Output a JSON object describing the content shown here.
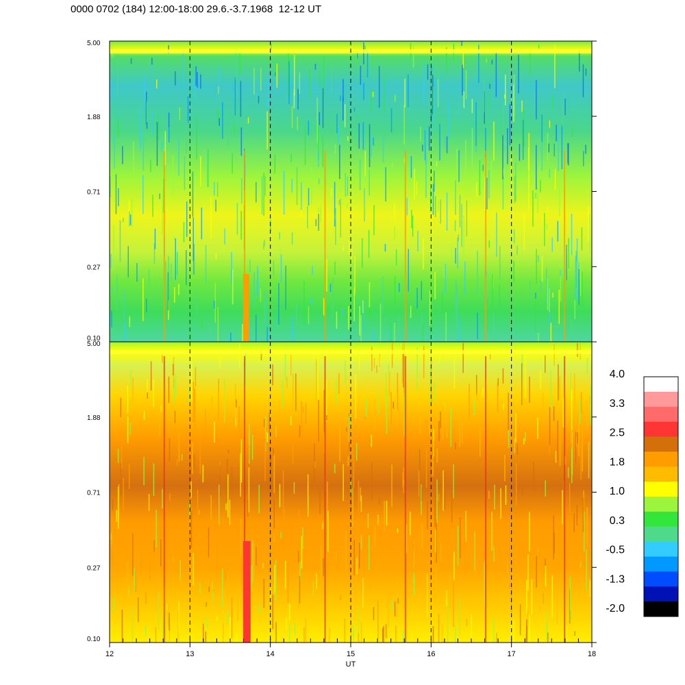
{
  "title": "0000 0702 (184) 12:00-18:00 29.6.-3.7.1968  12-12 UT",
  "chart_data": [
    {
      "type": "heatmap",
      "panel": "top",
      "x_range": [
        12,
        18
      ],
      "y_ticks": [
        "5.00",
        "1.88",
        "0.71",
        "0.27",
        "0.10"
      ],
      "xlabel": "",
      "dashed_verticals": [
        13,
        14,
        15,
        16,
        17
      ]
    },
    {
      "type": "heatmap",
      "panel": "bottom",
      "x_range": [
        12,
        18
      ],
      "y_ticks": [
        "5.00",
        "1.88",
        "0.71",
        "0.27",
        "0.10"
      ],
      "x_ticks": [
        "12",
        "13",
        "14",
        "15",
        "16",
        "17",
        "18"
      ],
      "xlabel": "UT",
      "dashed_verticals": [
        13,
        14,
        15,
        16,
        17
      ]
    }
  ],
  "colorbar": {
    "labels": [
      "4.0",
      "3.3",
      "2.5",
      "1.8",
      "1.0",
      "0.3",
      "-0.5",
      "-1.3",
      "-2.0"
    ],
    "colors": [
      "#ffffff",
      "#ff9a9a",
      "#ff6a6a",
      "#ff3535",
      "#d4700a",
      "#ff9c00",
      "#ffbb00",
      "#ffff00",
      "#9cf53c",
      "#33e63c",
      "#4fd98a",
      "#33ccff",
      "#0099ff",
      "#004cff",
      "#0012b5",
      "#000000"
    ]
  }
}
